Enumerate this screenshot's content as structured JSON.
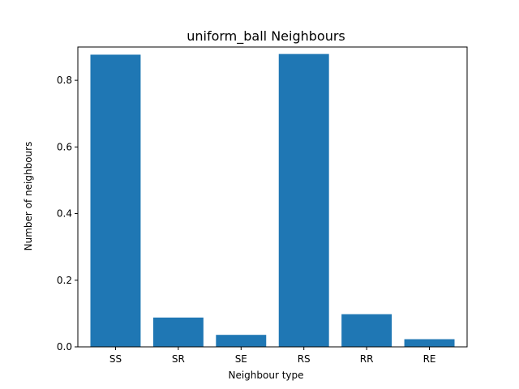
{
  "chart_data": {
    "type": "bar",
    "title": "uniform_ball Neighbours",
    "xlabel": "Neighbour type",
    "ylabel": "Number of neighbours",
    "categories": [
      "SS",
      "SR",
      "SE",
      "RS",
      "RR",
      "RE"
    ],
    "values": [
      0.877,
      0.088,
      0.036,
      0.879,
      0.098,
      0.023
    ],
    "ylim": [
      0,
      0.9
    ],
    "yticks": [
      0.0,
      0.2,
      0.4,
      0.6,
      0.8
    ],
    "ytick_labels": [
      "0.0",
      "0.2",
      "0.4",
      "0.6",
      "0.8"
    ],
    "grid": false,
    "bar_color": "#1f77b4"
  }
}
